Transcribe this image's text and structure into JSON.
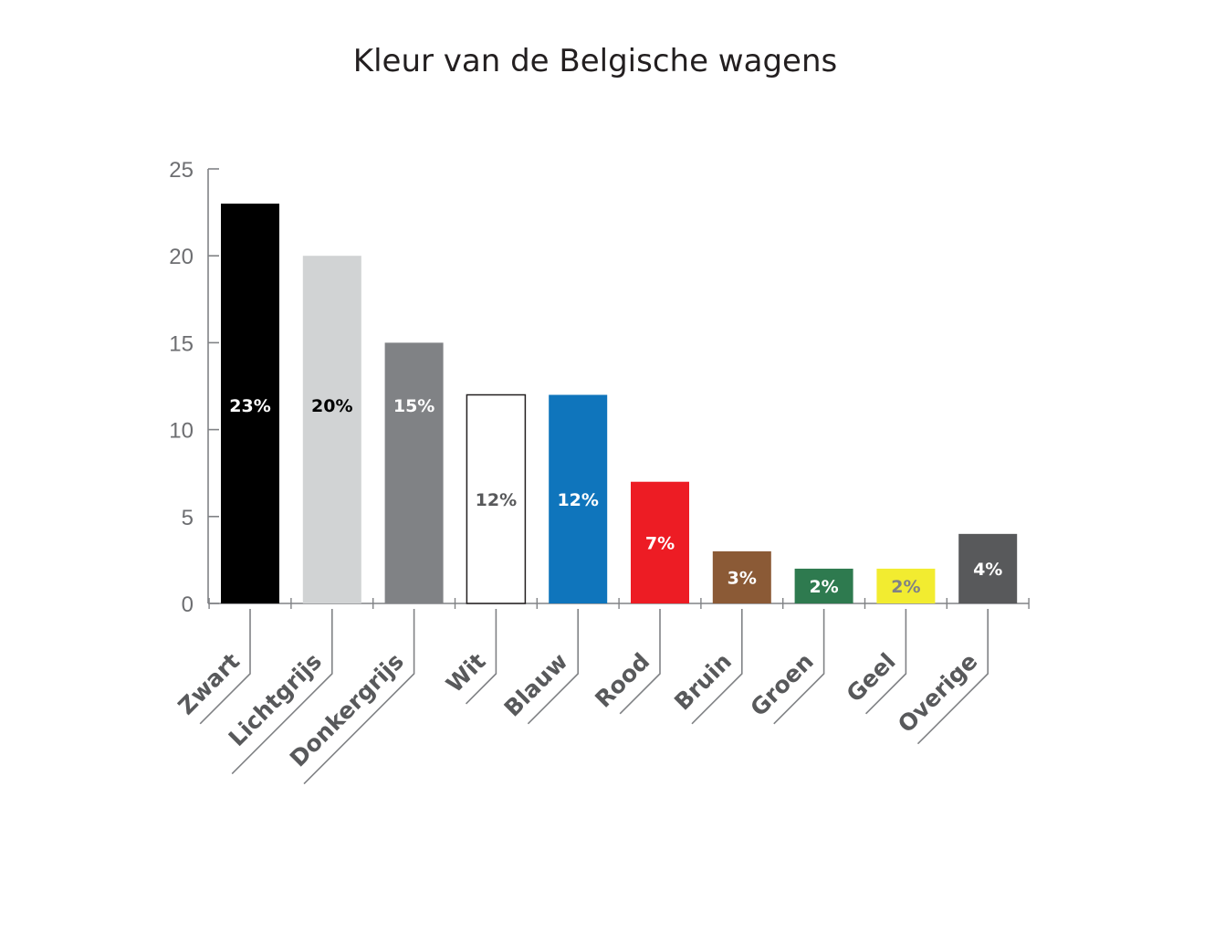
{
  "chart_data": {
    "type": "bar",
    "title": "Kleur van de Belgische wagens",
    "xlabel": "",
    "ylabel": "",
    "ylim": [
      0,
      25
    ],
    "yticks": [
      "0",
      "5",
      "10",
      "15",
      "20",
      "25"
    ],
    "grid": false,
    "legend": "none",
    "categories": [
      "Zwart",
      "Lichtgrijs",
      "Donkergrijs",
      "Wit",
      "Blauw",
      "Rood",
      "Bruin",
      "Groen",
      "Geel",
      "Overige"
    ],
    "values": [
      23,
      20,
      15,
      12,
      12,
      7,
      3,
      2,
      2,
      4
    ],
    "data_labels": [
      "23%",
      "20%",
      "15%",
      "12%",
      "12%",
      "7%",
      "3%",
      "2%",
      "2%",
      "4%"
    ],
    "bar_colors": [
      "#000000",
      "#d1d3d4",
      "#808285",
      "#ffffff",
      "#0f75bc",
      "#ed1c24",
      "#8b5a36",
      "#2e7a4f",
      "#f2ec30",
      "#58595b"
    ],
    "bar_outline": [
      "none",
      "none",
      "none",
      "#231f20",
      "none",
      "none",
      "none",
      "none",
      "none",
      "none"
    ],
    "label_colors": [
      "#ffffff",
      "#000000",
      "#ffffff",
      "#58595b",
      "#ffffff",
      "#ffffff",
      "#ffffff",
      "#ffffff",
      "#808285",
      "#ffffff"
    ]
  }
}
